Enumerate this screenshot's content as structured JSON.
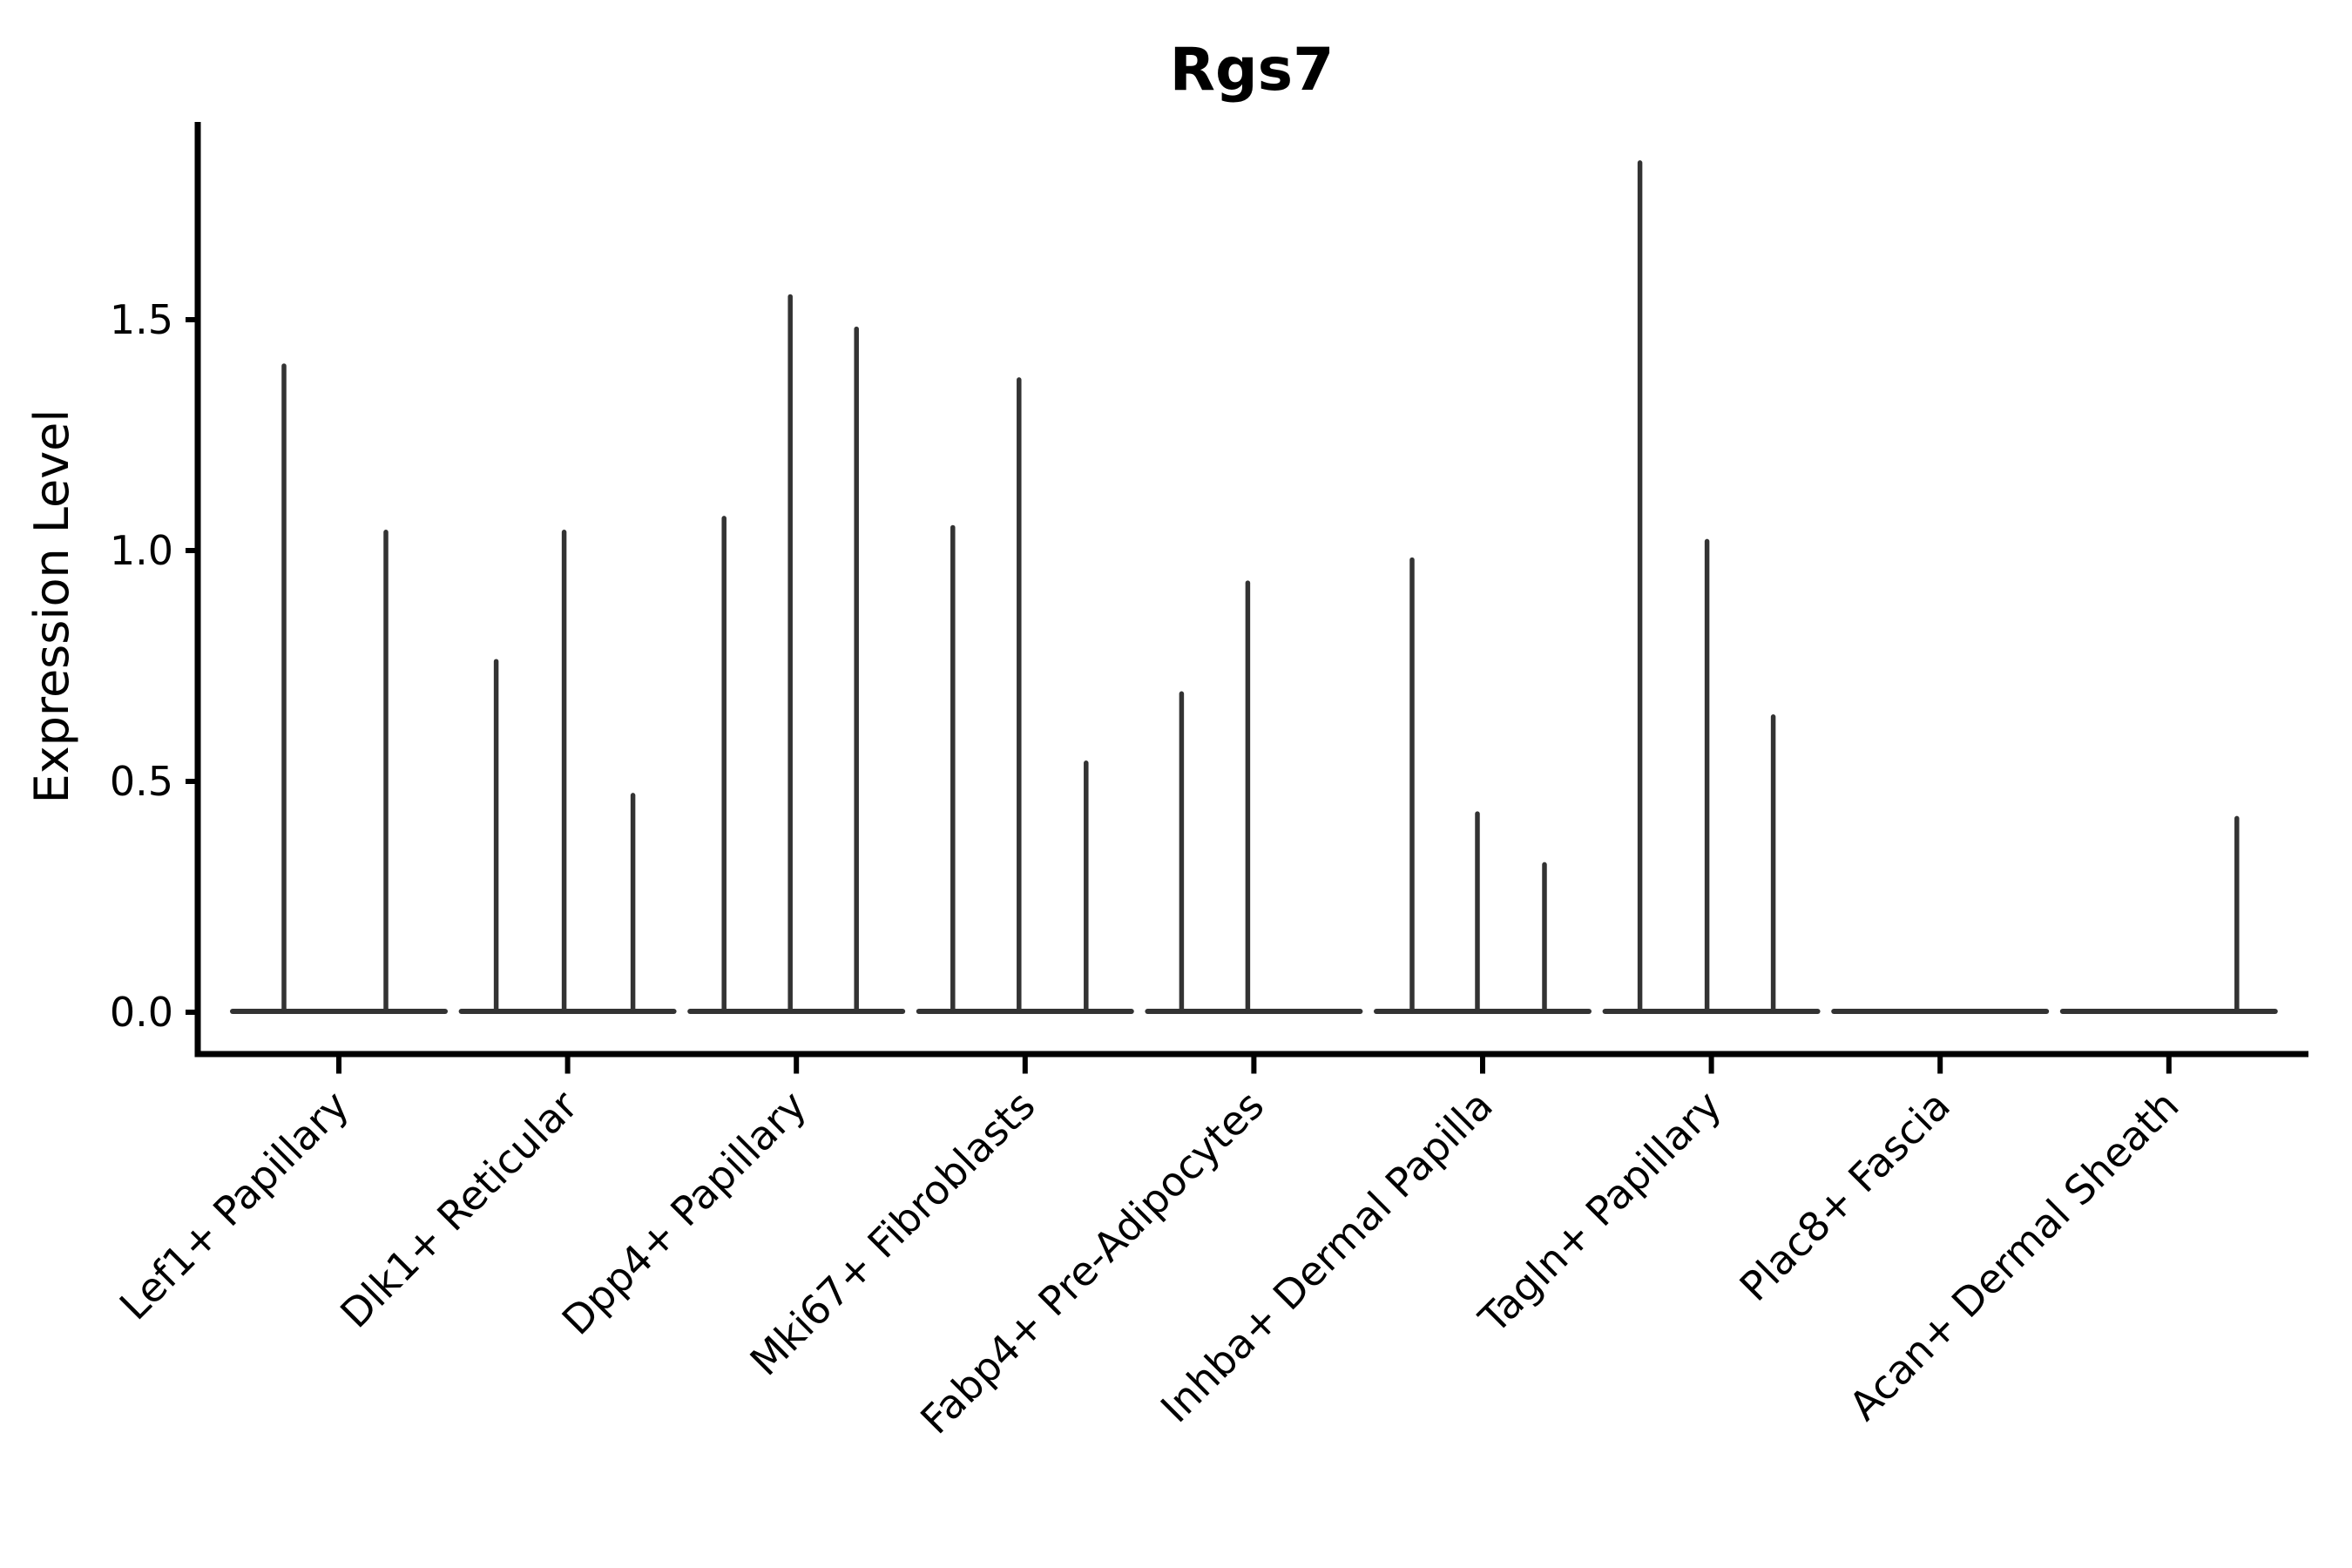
{
  "figure": {
    "background": "#ffffff"
  },
  "chart_data": {
    "type": "violin",
    "title": "Rgs7",
    "ylabel": "Expression Level",
    "xlabel": "",
    "grid": false,
    "legend": "none",
    "yticks": [
      0.0,
      0.5,
      1.0,
      1.5
    ],
    "ylim": [
      -0.09,
      1.93
    ],
    "categories": [
      "Lef1+ Papillary",
      "Dlk1+ Reticular",
      "Dpp4+ Papillary",
      "Mki67+ Fibroblasts",
      "Fabp4+ Pre-Adipocytes",
      "Inhba+ Dermal Papilla",
      "Tagln+ Papillary",
      "Plac8+ Fascia",
      "Acan+ Dermal Sheath"
    ],
    "violins": [
      {
        "category": "Lef1+ Papillary",
        "baseline_value": 0,
        "spikes": [
          {
            "offset": -63,
            "value": 1.4
          },
          {
            "offset": 54,
            "value": 1.04
          }
        ]
      },
      {
        "category": "Dlk1+ Reticular",
        "baseline_value": 0,
        "spikes": [
          {
            "offset": -82,
            "value": 0.76
          },
          {
            "offset": -4,
            "value": 1.04
          },
          {
            "offset": 75,
            "value": 0.47
          }
        ]
      },
      {
        "category": "Dpp4+ Papillary",
        "baseline_value": 0,
        "spikes": [
          {
            "offset": -83,
            "value": 1.07
          },
          {
            "offset": -7,
            "value": 1.55
          },
          {
            "offset": 69,
            "value": 1.48
          }
        ]
      },
      {
        "category": "Mki67+ Fibroblasts",
        "baseline_value": 0,
        "spikes": [
          {
            "offset": -83,
            "value": 1.05
          },
          {
            "offset": -7,
            "value": 1.37
          },
          {
            "offset": 70,
            "value": 0.54
          }
        ]
      },
      {
        "category": "Fabp4+ Pre-Adipocytes",
        "baseline_value": 0,
        "spikes": [
          {
            "offset": -83,
            "value": 0.69
          },
          {
            "offset": -7,
            "value": 0.93
          }
        ]
      },
      {
        "category": "Inhba+ Dermal Papilla",
        "baseline_value": 0,
        "spikes": [
          {
            "offset": -81,
            "value": 0.98
          },
          {
            "offset": -6,
            "value": 0.43
          },
          {
            "offset": 71,
            "value": 0.32
          }
        ]
      },
      {
        "category": "Tagln+ Papillary",
        "baseline_value": 0,
        "spikes": [
          {
            "offset": -82,
            "value": 1.84
          },
          {
            "offset": -5,
            "value": 1.02
          },
          {
            "offset": 71,
            "value": 0.64
          }
        ]
      },
      {
        "category": "Plac8+ Fascia",
        "baseline_value": 0,
        "spikes": []
      },
      {
        "category": "Acan+ Dermal Sheath",
        "baseline_value": 0,
        "spikes": [
          {
            "offset": 78,
            "value": 0.42
          }
        ]
      }
    ],
    "colors": {
      "violin": "#333333",
      "axis": "#000000",
      "text": "#000000"
    }
  }
}
